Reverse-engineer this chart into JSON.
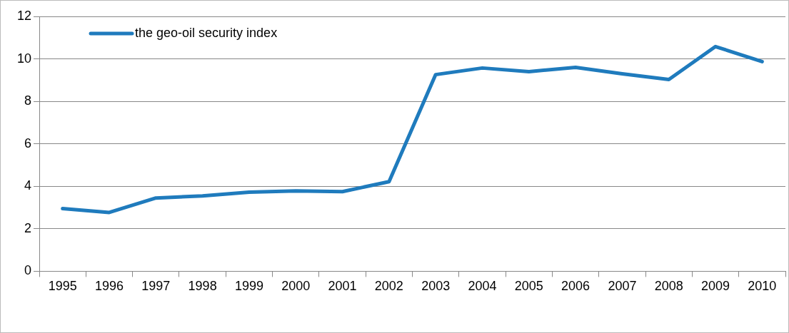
{
  "chart_data": {
    "type": "line",
    "categories": [
      "1995",
      "1996",
      "1997",
      "1998",
      "1999",
      "2000",
      "2001",
      "2002",
      "2003",
      "2004",
      "2005",
      "2006",
      "2007",
      "2008",
      "2009",
      "2010"
    ],
    "series": [
      {
        "name": "the geo-oil security index",
        "color": "#1f7bbd",
        "values": [
          2.95,
          2.77,
          3.45,
          3.55,
          3.72,
          3.78,
          3.75,
          4.22,
          9.26,
          9.57,
          9.4,
          9.6,
          9.3,
          9.03,
          10.58,
          9.87
        ]
      }
    ],
    "ylim": [
      0,
      12
    ],
    "yticks": [
      0,
      2,
      4,
      6,
      8,
      10,
      12
    ],
    "grid": "y",
    "legend": "top left",
    "marker": "none",
    "line_style": "solid"
  }
}
